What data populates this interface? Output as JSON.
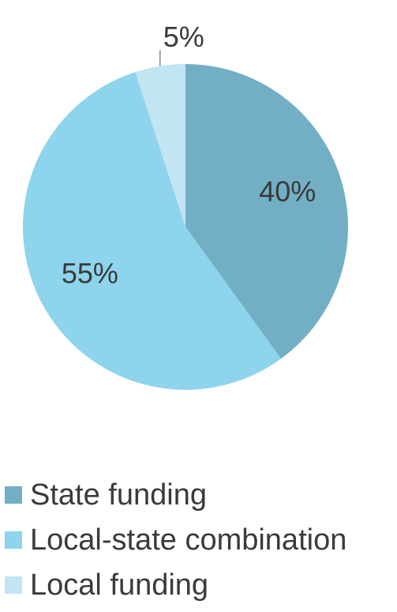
{
  "chart_data": {
    "type": "pie",
    "title": "",
    "categories": [
      "State funding",
      "Local-state combination",
      "Local funding"
    ],
    "values": [
      40,
      55,
      5
    ],
    "labels": [
      "40%",
      "55%",
      "5%"
    ],
    "colors": [
      "#72afc5",
      "#8dd4ec",
      "#c3e4f3"
    ],
    "legend_position": "bottom-left",
    "start": "12 o'clock",
    "direction": "clockwise"
  }
}
